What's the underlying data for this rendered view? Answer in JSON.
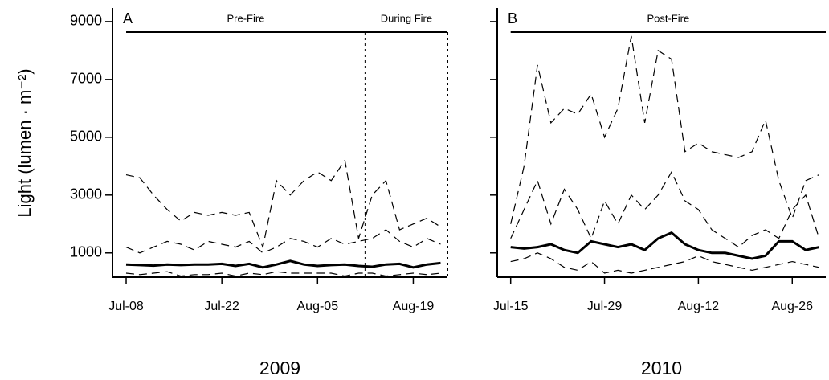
{
  "chart_data": [
    {
      "type": "line",
      "panel_label": "A",
      "ylabel": "Light (lumen · m⁻²)",
      "xlabel": "2009",
      "x": [
        "Jul-08",
        "Jul-10",
        "Jul-12",
        "Jul-14",
        "Jul-16",
        "Jul-18",
        "Jul-20",
        "Jul-22",
        "Jul-24",
        "Jul-26",
        "Jul-28",
        "Jul-30",
        "Aug-01",
        "Aug-03",
        "Aug-05",
        "Aug-07",
        "Aug-09",
        "Aug-11",
        "Aug-13",
        "Aug-15",
        "Aug-17",
        "Aug-19",
        "Aug-21",
        "Aug-23"
      ],
      "xlim": [
        "Jul-06",
        "Aug-24"
      ],
      "xticks": [
        "Jul-08",
        "Jul-22",
        "Aug-05",
        "Aug-19"
      ],
      "ylim": [
        160,
        9470
      ],
      "yticks": [
        1000,
        3000,
        5000,
        7000,
        9000
      ],
      "show_ytick_labels": true,
      "annotations": [
        {
          "text": "Pre-Fire",
          "span": [
            "Jul-08",
            "Aug-12"
          ],
          "dotted": false
        },
        {
          "text": "During Fire",
          "span": [
            "Aug-12",
            "Aug-24"
          ],
          "dotted": true
        }
      ],
      "series": [
        {
          "color": "#000000",
          "style": "solid",
          "values": [
            600,
            580,
            560,
            600,
            580,
            600,
            600,
            620,
            550,
            620,
            500,
            600,
            720,
            600,
            550,
            580,
            600,
            550,
            520,
            600,
            620,
            500,
            600,
            650
          ]
        },
        {
          "color": "#000000",
          "style": "dashed",
          "values": [
            3700,
            3600,
            3000,
            2500,
            2100,
            2400,
            2300,
            2400,
            2300,
            2400,
            1200,
            3500,
            3000,
            3500,
            3800,
            3500,
            4200,
            1500,
            3000,
            3500,
            1800,
            2000,
            2200,
            1900
          ]
        },
        {
          "color": "#000000",
          "style": "dashed",
          "values": [
            1200,
            1000,
            1200,
            1400,
            1300,
            1100,
            1400,
            1300,
            1200,
            1400,
            1000,
            1200,
            1500,
            1400,
            1200,
            1500,
            1300,
            1400,
            1500,
            1800,
            1400,
            1200,
            1500,
            1300
          ]
        },
        {
          "color": "#000000",
          "style": "dashed",
          "values": [
            300,
            250,
            300,
            350,
            200,
            250,
            250,
            300,
            200,
            300,
            250,
            350,
            300,
            300,
            300,
            300,
            200,
            300,
            300,
            200,
            250,
            300,
            250,
            300
          ]
        }
      ]
    },
    {
      "type": "line",
      "panel_label": "B",
      "xlabel": "2010",
      "x": [
        "Jul-15",
        "Jul-17",
        "Jul-19",
        "Jul-21",
        "Jul-23",
        "Jul-25",
        "Jul-27",
        "Jul-29",
        "Jul-31",
        "Aug-02",
        "Aug-04",
        "Aug-06",
        "Aug-08",
        "Aug-10",
        "Aug-12",
        "Aug-14",
        "Aug-16",
        "Aug-18",
        "Aug-20",
        "Aug-22",
        "Aug-24",
        "Aug-26",
        "Aug-28",
        "Aug-30"
      ],
      "xlim": [
        "Jul-13",
        "Aug-31"
      ],
      "xticks": [
        "Jul-15",
        "Jul-29",
        "Aug-12",
        "Aug-26"
      ],
      "ylim": [
        160,
        9470
      ],
      "yticks": [
        1000,
        3000,
        5000,
        7000,
        9000
      ],
      "show_ytick_labels": false,
      "annotations": [
        {
          "text": "Post-Fire",
          "span": [
            "Jul-15",
            "Aug-31"
          ],
          "dotted": false
        }
      ],
      "series": [
        {
          "color": "#000000",
          "style": "solid",
          "values": [
            1200,
            1150,
            1200,
            1300,
            1100,
            1000,
            1400,
            1300,
            1200,
            1300,
            1100,
            1500,
            1700,
            1300,
            1100,
            1000,
            1000,
            900,
            800,
            900,
            1400,
            1400,
            1100,
            1200
          ]
        },
        {
          "color": "#000000",
          "style": "dashed",
          "values": [
            2000,
            4000,
            7500,
            5500,
            6000,
            5800,
            6500,
            5000,
            6000,
            8500,
            5500,
            8000,
            7700,
            4500,
            4800,
            4500,
            4400,
            4300,
            4500,
            5600,
            3500,
            2200,
            3500,
            3700
          ]
        },
        {
          "color": "#000000",
          "style": "dashed",
          "values": [
            1500,
            2500,
            3500,
            2000,
            3200,
            2500,
            1500,
            2800,
            2000,
            3000,
            2500,
            3000,
            3800,
            2800,
            2500,
            1800,
            1500,
            1200,
            1600,
            1800,
            1500,
            2500,
            3000,
            1500
          ]
        },
        {
          "color": "#000000",
          "style": "dashed",
          "values": [
            700,
            800,
            1000,
            800,
            500,
            400,
            700,
            300,
            400,
            300,
            400,
            500,
            600,
            700,
            900,
            700,
            600,
            500,
            400,
            500,
            600,
            700,
            600,
            500
          ]
        }
      ]
    }
  ]
}
